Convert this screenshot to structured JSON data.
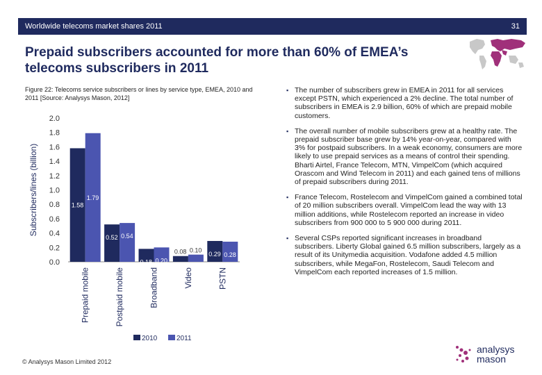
{
  "header": {
    "title": "Worldwide telecoms market shares 2011",
    "page_number": "31"
  },
  "headline": "Prepaid subscribers accounted for more than 60% of EMEA’s telecoms subscribers in 2011",
  "figure_caption": "Figure 22: Telecoms service subscribers or lines by service type, EMEA, 2010 and 2011 [Source: Analysys Mason, 2012]",
  "bullets": [
    "The number of subscribers grew in EMEA in 2011 for all services except PSTN, which experienced a 2% decline. The total number of subscribers in EMEA is 2.9 billion, 60% of which are prepaid mobile customers.",
    "The overall number of mobile subscribers grew at a healthy rate. The prepaid subscriber base grew by 14% year-on-year, compared with 3% for postpaid subscribers. In a weak economy, consumers are more likely to use prepaid services as a means of control their spending. Bharti Airtel, France Telecom, MTN, VimpelCom (which acquired Orascom and Wind Telecom in 2011) and each gained tens of millions of prepaid subscribers during 2011.",
    "France Telecom, Rostelecom and VimpelCom gained a combined total of 20 million subscribers overall. VimpelCom lead the way with 13 million additions, while Rostelecom reported an increase in video subscribers from 900 000 to 5 900 000 during 2011.",
    "Several CSPs reported significant increases in broadband subscribers. Liberty Global gained 6.5 million subscribers, largely as a result of its Unitymedia acquisition. Vodafone added 4.5 million subscribers, while MegaFon, Rostelecom, Saudi Telecom and VimpelCom each reported increases of 1.5 million."
  ],
  "footer": "© Analysys Mason Limited 2012",
  "logo": {
    "line1": "analysys",
    "line2": "mason"
  },
  "colors": {
    "header_bar": "#1f2a5e",
    "series_2010": "#1f2a5e",
    "series_2011": "#4b55b0",
    "map_highlight": "#a0307a",
    "map_base": "#c8c8c8"
  },
  "chart_data": {
    "type": "bar",
    "ylabel": "Subscribers/lines (billion)",
    "xlabel": "",
    "ylim": [
      0,
      2.0
    ],
    "yticks": [
      "0.0",
      "0.2",
      "0.4",
      "0.6",
      "0.8",
      "1.0",
      "1.2",
      "1.4",
      "1.6",
      "1.8",
      "2.0"
    ],
    "categories": [
      "Prepaid mobile",
      "Postpaid mobile",
      "Broadband",
      "Video",
      "PSTN"
    ],
    "series": [
      {
        "name": "2010",
        "values": [
          1.58,
          0.52,
          0.18,
          0.08,
          0.29
        ],
        "labels": [
          "1.58",
          "0.52",
          "0.18",
          "0.08",
          "0.29"
        ]
      },
      {
        "name": "2011",
        "values": [
          1.79,
          0.54,
          0.2,
          0.1,
          0.28
        ],
        "labels": [
          "1.79",
          "0.54",
          "0.20",
          "0.10",
          "0.28"
        ]
      }
    ],
    "legend_position": "bottom",
    "grid": false
  }
}
